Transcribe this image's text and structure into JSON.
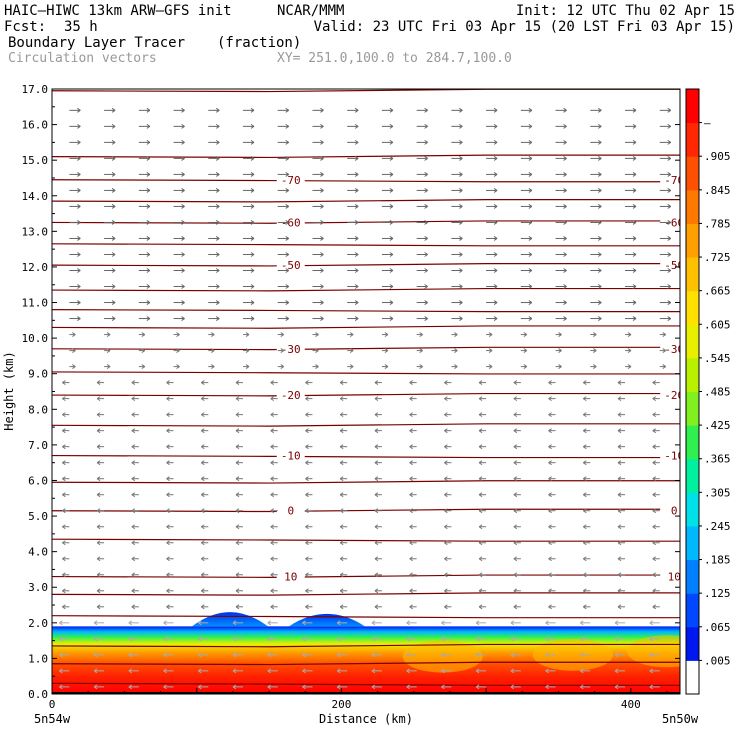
{
  "header": {
    "model": "HAIC–HIWC 13km ARW–GFS init",
    "org": "NCAR/MMM",
    "init": "Init: 12 UTC Thu 02 Apr 15",
    "fcst_label": "Fcst:",
    "fcst_value": "35 h",
    "valid": "Valid: 23 UTC Fri 03 Apr 15 (20 LST Fri 03 Apr 15)",
    "field": "Boundary Layer Tracer",
    "field_units": "(fraction)",
    "vectors": "Circulation vectors",
    "xy": "XY= 251.0,100.0 to 284.7,100.0"
  },
  "chart_data": {
    "type": "cross-section",
    "xlabel": "Distance (km)",
    "ylabel": "Height (km)",
    "xlim": [
      0,
      434
    ],
    "ylim": [
      0,
      17
    ],
    "xticks": [
      0,
      200,
      400
    ],
    "yticks": [
      "0.0",
      "1.0",
      "2.0",
      "3.0",
      "4.0",
      "5.0",
      "6.0",
      "7.0",
      "8.0",
      "9.0",
      "10.0",
      "11.0",
      "12.0",
      "13.0",
      "14.0",
      "15.0",
      "16.0",
      "17.0"
    ],
    "x_endpoints": {
      "left": "5n54w",
      "right": "5n50w"
    },
    "temperature_contours": [
      {
        "label": "10",
        "h": 3.3
      },
      {
        "label": "0",
        "h": 5.15
      },
      {
        "label": "-10",
        "h": 6.7
      },
      {
        "label": "-20",
        "h": 8.4
      },
      {
        "label": "-30",
        "h": 9.7
      },
      {
        "label": "-50",
        "h": 12.05
      },
      {
        "label": "-60",
        "h": 13.25
      },
      {
        "label": "-70",
        "h": 14.45
      }
    ],
    "contour_lines": [
      0.3,
      0.85,
      1.35,
      2.2,
      2.8,
      3.3,
      4.35,
      5.15,
      5.95,
      6.7,
      7.55,
      8.4,
      9.05,
      9.7,
      10.3,
      10.8,
      11.35,
      12.05,
      12.65,
      13.25,
      13.85,
      14.45,
      15.1,
      16.95
    ],
    "colorbar": {
      "labels": [
        ".005",
        ".065",
        ".125",
        ".185",
        ".245",
        ".305",
        ".365",
        ".425",
        ".485",
        ".545",
        ".605",
        ".665",
        ".725",
        ".785",
        ".845",
        ".905",
        "–"
      ],
      "colors": [
        "#ffffff",
        "#0018f0",
        "#0048ff",
        "#0080ff",
        "#00b8ff",
        "#00e0e8",
        "#00f0a0",
        "#30f050",
        "#80f020",
        "#b8f000",
        "#e8f000",
        "#ffe000",
        "#ffc000",
        "#ffa000",
        "#ff7800",
        "#ff5000",
        "#ff2800",
        "#ff0000"
      ]
    },
    "tracer_layer": {
      "top_km": 1.9,
      "bumps": [
        {
          "center_km": 123,
          "top_km": 2.3
        },
        {
          "center_km": 190,
          "top_km": 2.25
        }
      ]
    },
    "wind_pattern": {
      "upper_levels": "westerly",
      "mid_levels": "easterly",
      "boundary_layer": "easterly"
    }
  }
}
